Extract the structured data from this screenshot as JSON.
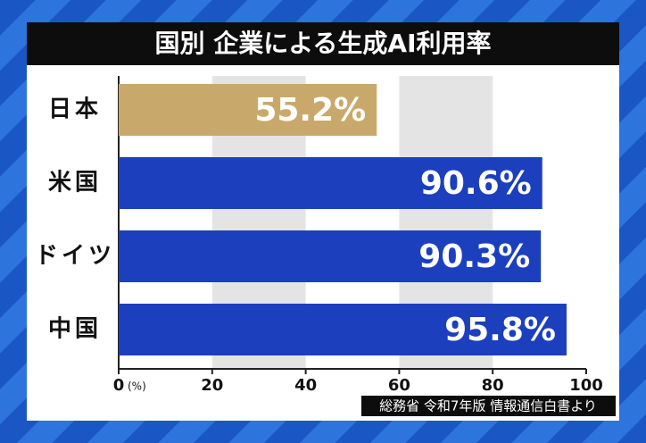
{
  "chart_data": {
    "type": "barh",
    "title": "国別 企業による生成AI利用率",
    "categories": [
      "日本",
      "米国",
      "ドイツ",
      "中国"
    ],
    "values": [
      55.2,
      90.6,
      90.3,
      95.8
    ],
    "value_labels": [
      "55.2%",
      "90.6%",
      "90.3%",
      "95.8%"
    ],
    "colors": [
      "#c9a96b",
      "#1b3fbd",
      "#1b3fbd",
      "#1b3fbd"
    ],
    "xlim": [
      0,
      100
    ],
    "xticks": [
      0,
      20,
      40,
      60,
      80,
      100
    ],
    "x_unit": "(%)",
    "grid": true,
    "source": "総務省 令和7年版 情報通信白書より"
  }
}
